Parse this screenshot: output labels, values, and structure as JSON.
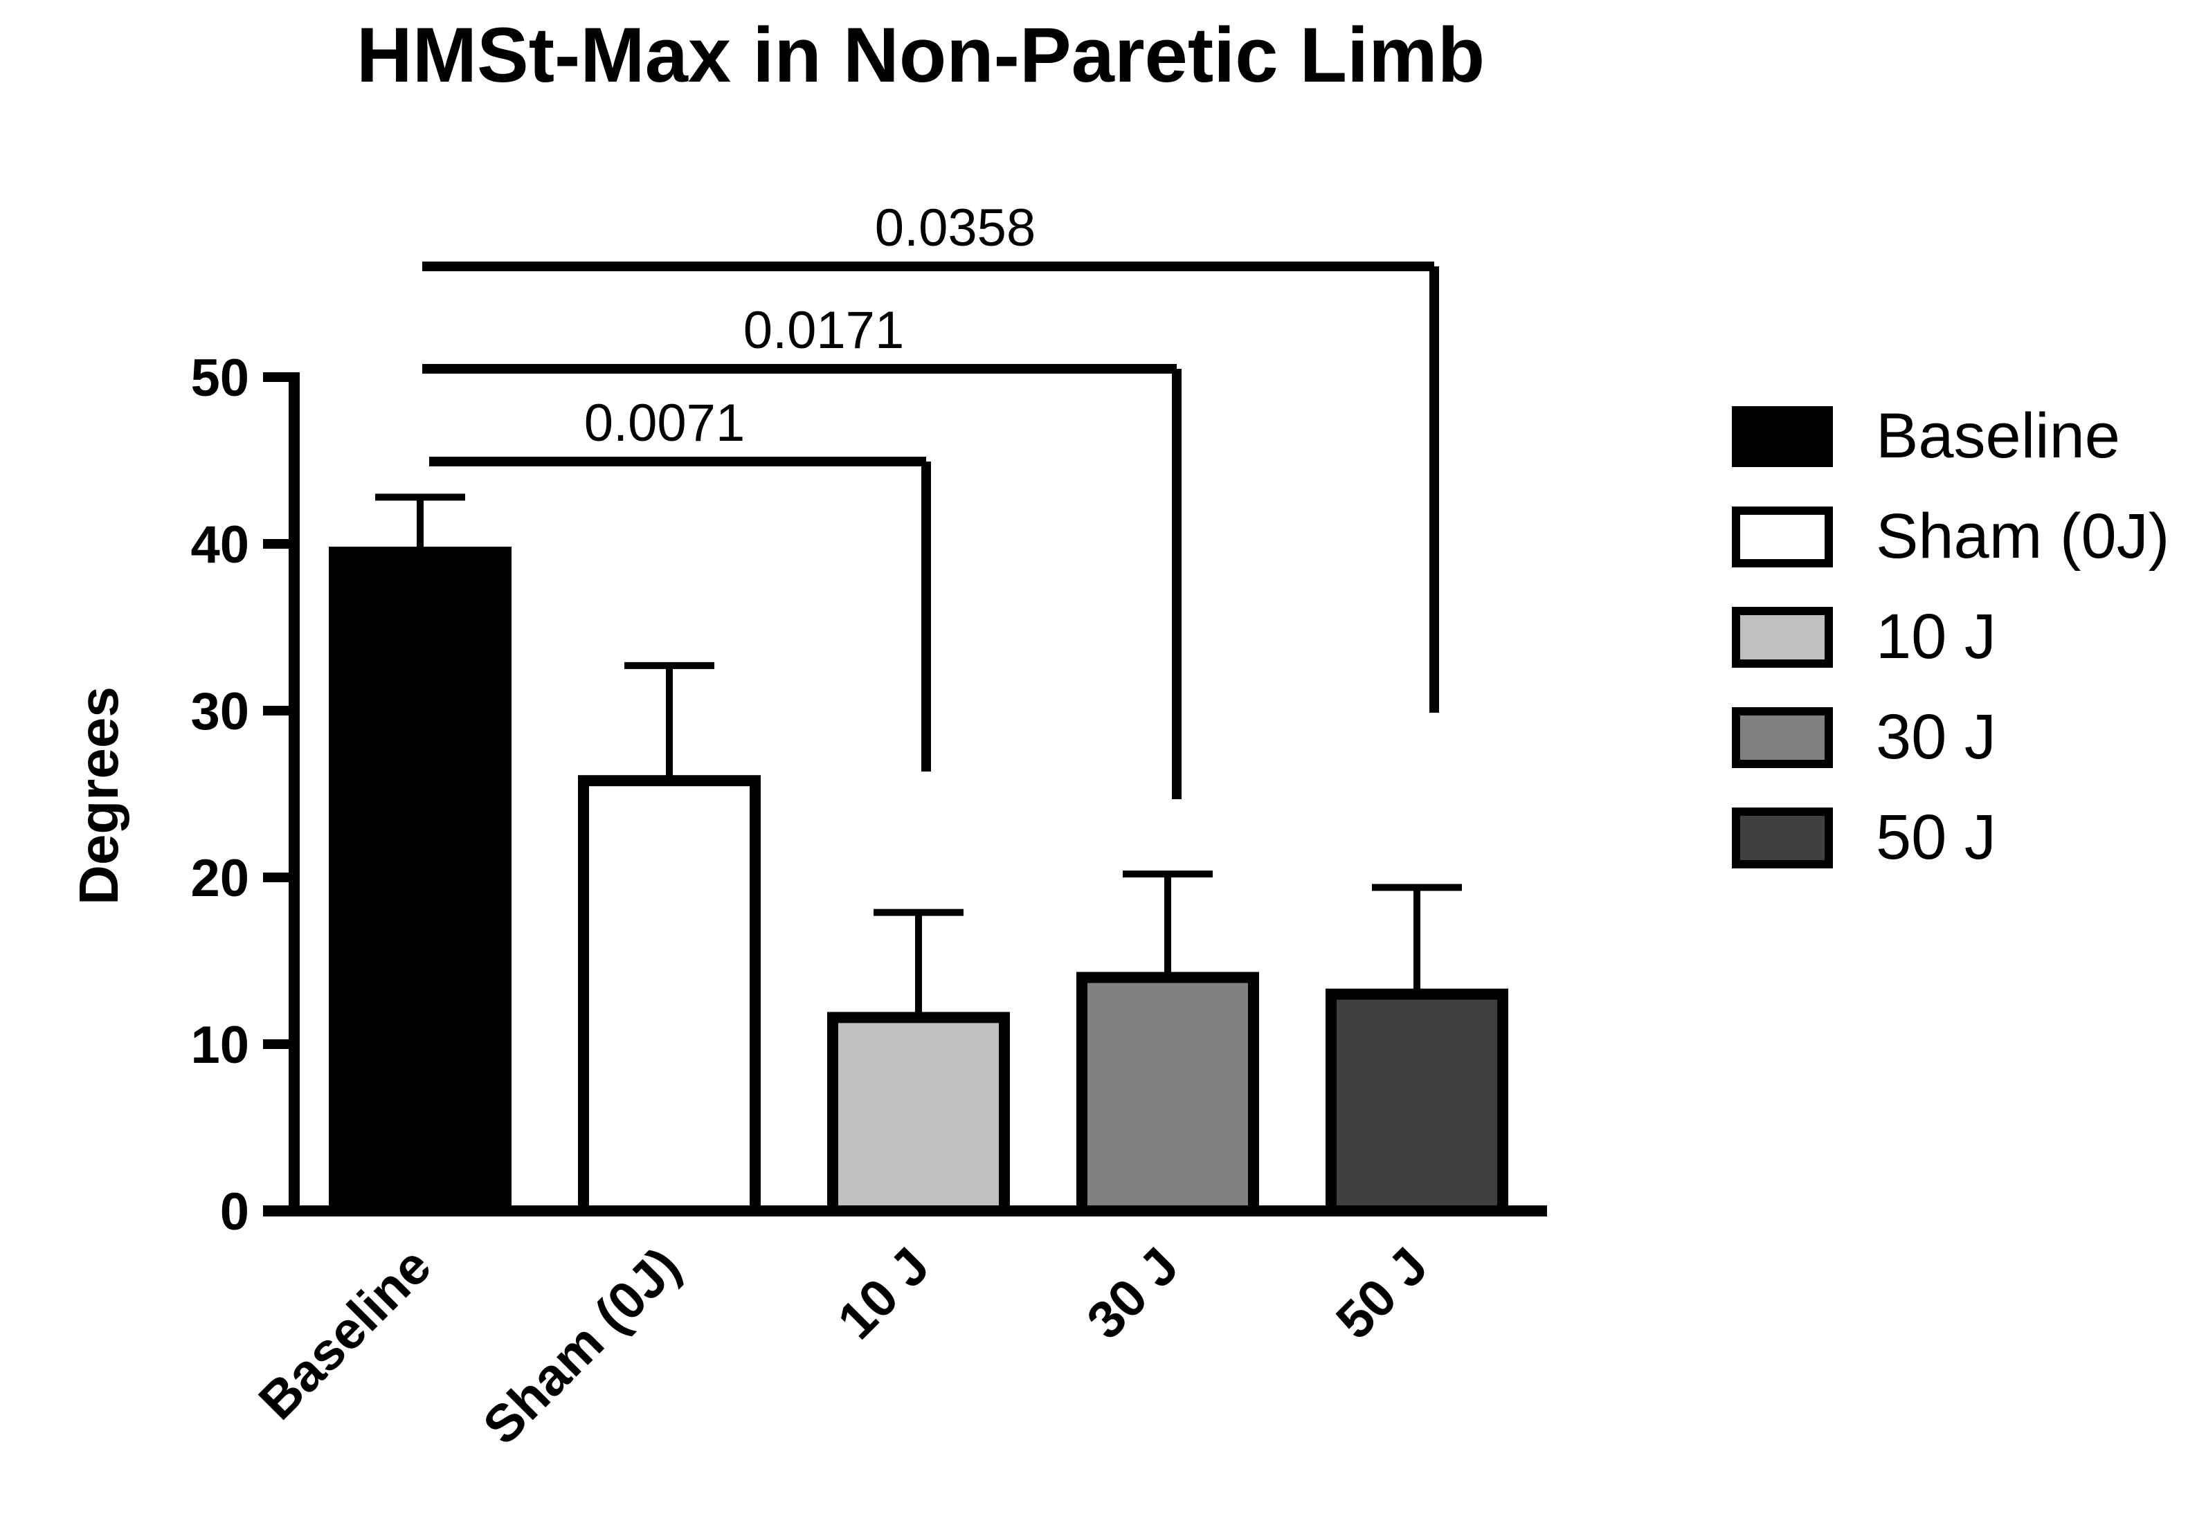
{
  "chart_data": {
    "type": "bar",
    "title": "HMSt-Max in Non-Paretic Limb",
    "ylabel": "Degrees",
    "xlabel": "",
    "ylim": [
      0,
      50
    ],
    "yticks": [
      0,
      10,
      20,
      30,
      40,
      50
    ],
    "categories": [
      "Baseline",
      "Sham (0J)",
      "10 J",
      "30 J",
      "50 J"
    ],
    "values": [
      39.5,
      25.8,
      11.6,
      14.0,
      13.0
    ],
    "errors": [
      3.3,
      6.9,
      6.3,
      6.2,
      6.4
    ],
    "colors": [
      "#000000",
      "#ffffff",
      "#c0c0c0",
      "#808080",
      "#404040"
    ],
    "legend": {
      "position": "right",
      "entries": [
        "Baseline",
        "Sham (0J)",
        "10 J",
        "30 J",
        "50 J"
      ]
    },
    "significance": [
      {
        "from": "Baseline",
        "to": "10 J",
        "label": "0.0071"
      },
      {
        "from": "Baseline",
        "to": "30 J",
        "label": "0.0171"
      },
      {
        "from": "Baseline",
        "to": "50 J",
        "label": "0.0358"
      }
    ],
    "grid": false
  }
}
